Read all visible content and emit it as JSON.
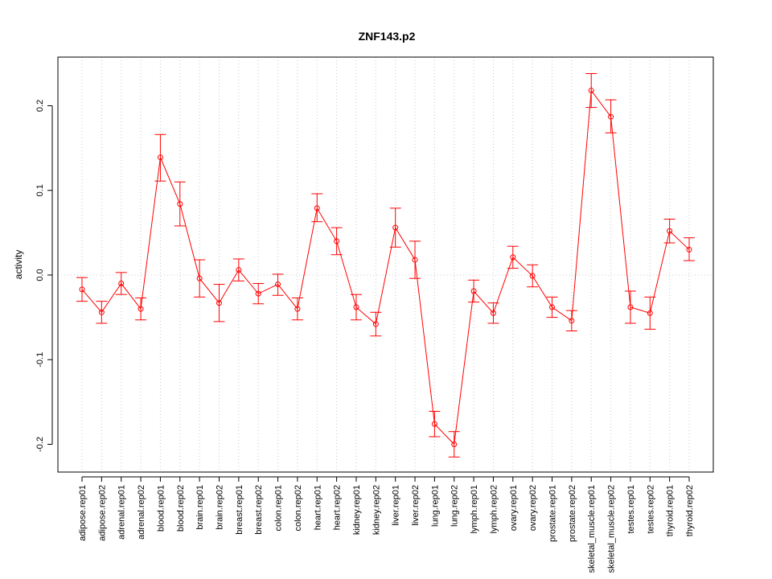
{
  "chart_data": {
    "type": "line",
    "title": "ZNF143.p2",
    "xlabel": "",
    "ylabel": "activity",
    "ylim": [
      -0.23,
      0.25
    ],
    "yticks": [
      -0.2,
      -0.1,
      0.0,
      0.1,
      0.2
    ],
    "ytick_labels": [
      "-0.2",
      "-0.1",
      "0.0",
      "0.1",
      "0.2"
    ],
    "grid": true,
    "categories": [
      "adipose.rep01",
      "adipose.rep02",
      "adrenal.rep01",
      "adrenal.rep02",
      "blood.rep01",
      "blood.rep02",
      "brain.rep01",
      "brain.rep02",
      "breast.rep01",
      "breast.rep02",
      "colon.rep01",
      "colon.rep02",
      "heart.rep01",
      "heart.rep02",
      "kidney.rep01",
      "kidney.rep02",
      "liver.rep01",
      "liver.rep02",
      "lung.rep01",
      "lung.rep02",
      "lymph.rep01",
      "lymph.rep02",
      "ovary.rep01",
      "ovary.rep02",
      "prostate.rep01",
      "prostate.rep02",
      "skeletal_muscle.rep01",
      "skeletal_muscle.rep02",
      "testes.rep01",
      "testes.rep02",
      "thyroid.rep01",
      "thyroid.rep02"
    ],
    "series": [
      {
        "color": "#ff0000",
        "values": [
          -0.017,
          -0.044,
          -0.01,
          -0.04,
          0.139,
          0.084,
          -0.004,
          -0.033,
          0.006,
          -0.022,
          -0.011,
          -0.04,
          0.079,
          0.04,
          -0.038,
          -0.058,
          0.056,
          0.018,
          -0.176,
          -0.2,
          -0.019,
          -0.045,
          0.021,
          -0.001,
          -0.038,
          -0.054,
          0.218,
          0.187,
          -0.038,
          -0.045,
          0.052,
          0.03
        ],
        "lower": [
          -0.031,
          -0.057,
          -0.023,
          -0.053,
          0.111,
          0.058,
          -0.026,
          -0.055,
          -0.007,
          -0.034,
          -0.024,
          -0.053,
          0.063,
          0.024,
          -0.053,
          -0.072,
          0.033,
          -0.004,
          -0.191,
          -0.215,
          -0.032,
          -0.057,
          0.008,
          -0.014,
          -0.05,
          -0.066,
          0.198,
          0.168,
          -0.057,
          -0.064,
          0.038,
          0.017
        ],
        "upper": [
          -0.003,
          -0.031,
          0.003,
          -0.027,
          0.166,
          0.11,
          0.018,
          -0.011,
          0.019,
          -0.01,
          0.001,
          -0.027,
          0.096,
          0.056,
          -0.023,
          -0.044,
          0.079,
          0.04,
          -0.161,
          -0.185,
          -0.006,
          -0.033,
          0.034,
          0.012,
          -0.026,
          -0.042,
          0.238,
          0.207,
          -0.019,
          -0.026,
          0.066,
          0.044
        ]
      }
    ]
  }
}
